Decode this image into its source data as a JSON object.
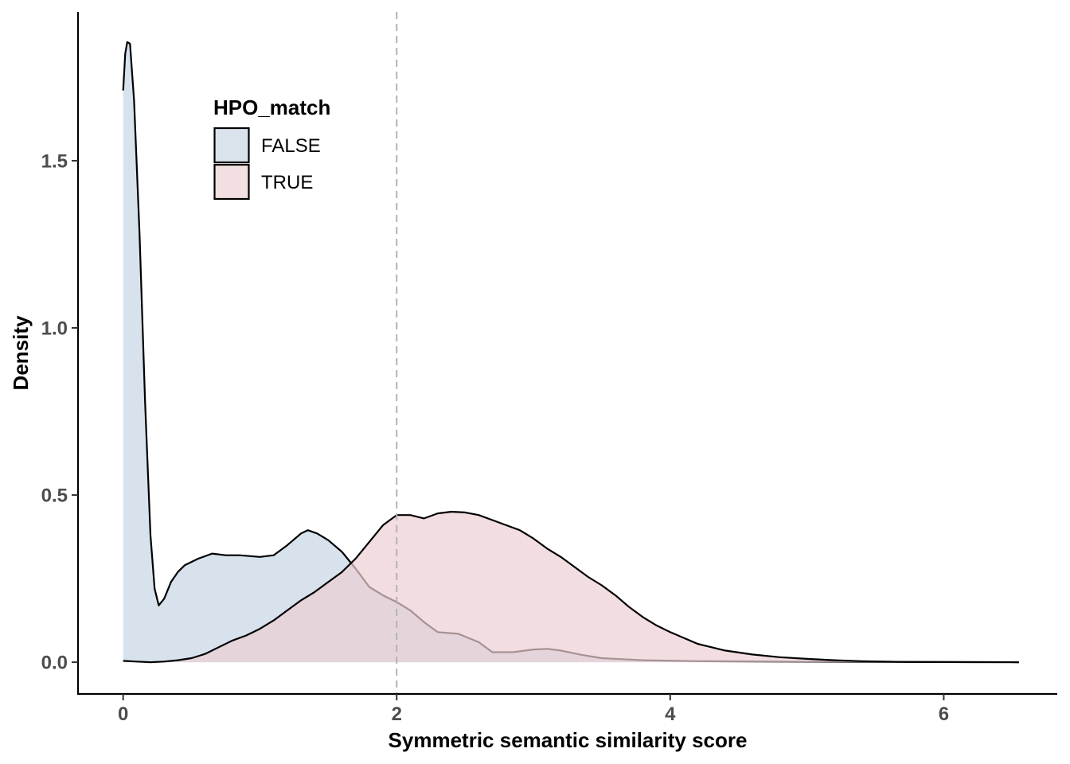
{
  "chart_data": {
    "type": "area",
    "xlabel": "Symmetric semantic similarity score",
    "ylabel": "Density",
    "xlim": [
      -0.33,
      6.83
    ],
    "ylim": [
      -0.095,
      1.945
    ],
    "x_ticks": [
      0,
      2,
      4,
      6
    ],
    "x_tick_labels": [
      "0",
      "2",
      "4",
      "6"
    ],
    "y_ticks": [
      0,
      0.5,
      1,
      1.5
    ],
    "y_tick_labels": [
      "0.0",
      "0.5",
      "1.0",
      "1.5"
    ],
    "grid": false,
    "reference_line": {
      "x": 2,
      "style": "dashed",
      "color": "#b3b3b3"
    },
    "legend": {
      "title": "HPO_match",
      "placement": "top-left",
      "entries": [
        {
          "label": "FALSE",
          "color": "#dae3ec"
        },
        {
          "label": "TRUE",
          "color": "#f2dfe2"
        }
      ]
    },
    "series": [
      {
        "name": "FALSE",
        "fill": "#c8d6e5",
        "fill_opacity": 0.7,
        "points": [
          [
            0.0,
            1.71
          ],
          [
            0.015,
            1.82
          ],
          [
            0.03,
            1.855
          ],
          [
            0.05,
            1.85
          ],
          [
            0.08,
            1.68
          ],
          [
            0.12,
            1.28
          ],
          [
            0.16,
            0.78
          ],
          [
            0.2,
            0.38
          ],
          [
            0.23,
            0.22
          ],
          [
            0.26,
            0.17
          ],
          [
            0.3,
            0.19
          ],
          [
            0.35,
            0.24
          ],
          [
            0.4,
            0.27
          ],
          [
            0.45,
            0.29
          ],
          [
            0.55,
            0.31
          ],
          [
            0.65,
            0.325
          ],
          [
            0.75,
            0.32
          ],
          [
            0.85,
            0.32
          ],
          [
            1.0,
            0.315
          ],
          [
            1.1,
            0.32
          ],
          [
            1.2,
            0.35
          ],
          [
            1.3,
            0.385
          ],
          [
            1.35,
            0.395
          ],
          [
            1.42,
            0.385
          ],
          [
            1.5,
            0.365
          ],
          [
            1.6,
            0.33
          ],
          [
            1.7,
            0.28
          ],
          [
            1.8,
            0.225
          ],
          [
            1.9,
            0.2
          ],
          [
            2.0,
            0.18
          ],
          [
            2.1,
            0.155
          ],
          [
            2.2,
            0.12
          ],
          [
            2.3,
            0.09
          ],
          [
            2.45,
            0.085
          ],
          [
            2.6,
            0.06
          ],
          [
            2.7,
            0.03
          ],
          [
            2.85,
            0.03
          ],
          [
            3.0,
            0.038
          ],
          [
            3.1,
            0.04
          ],
          [
            3.2,
            0.035
          ],
          [
            3.35,
            0.022
          ],
          [
            3.5,
            0.012
          ],
          [
            3.8,
            0.006
          ],
          [
            4.2,
            0.003
          ],
          [
            4.8,
            0.002
          ],
          [
            5.5,
            0.001
          ],
          [
            6.2,
            0.0003
          ],
          [
            6.55,
            0.0
          ]
        ]
      },
      {
        "name": "TRUE",
        "fill": "#ecced3",
        "fill_opacity": 0.7,
        "points": [
          [
            0.0,
            0.004
          ],
          [
            0.1,
            0.002
          ],
          [
            0.2,
            0.0
          ],
          [
            0.3,
            0.002
          ],
          [
            0.4,
            0.006
          ],
          [
            0.5,
            0.012
          ],
          [
            0.6,
            0.025
          ],
          [
            0.7,
            0.045
          ],
          [
            0.8,
            0.065
          ],
          [
            0.9,
            0.08
          ],
          [
            1.0,
            0.1
          ],
          [
            1.1,
            0.125
          ],
          [
            1.2,
            0.155
          ],
          [
            1.3,
            0.185
          ],
          [
            1.4,
            0.21
          ],
          [
            1.5,
            0.24
          ],
          [
            1.6,
            0.27
          ],
          [
            1.7,
            0.31
          ],
          [
            1.8,
            0.36
          ],
          [
            1.9,
            0.41
          ],
          [
            2.0,
            0.44
          ],
          [
            2.1,
            0.44
          ],
          [
            2.2,
            0.43
          ],
          [
            2.3,
            0.445
          ],
          [
            2.4,
            0.45
          ],
          [
            2.5,
            0.448
          ],
          [
            2.6,
            0.44
          ],
          [
            2.7,
            0.425
          ],
          [
            2.8,
            0.41
          ],
          [
            2.9,
            0.395
          ],
          [
            3.0,
            0.37
          ],
          [
            3.1,
            0.34
          ],
          [
            3.2,
            0.315
          ],
          [
            3.3,
            0.285
          ],
          [
            3.4,
            0.255
          ],
          [
            3.5,
            0.23
          ],
          [
            3.6,
            0.2
          ],
          [
            3.7,
            0.165
          ],
          [
            3.8,
            0.135
          ],
          [
            3.9,
            0.11
          ],
          [
            4.0,
            0.09
          ],
          [
            4.2,
            0.055
          ],
          [
            4.4,
            0.035
          ],
          [
            4.6,
            0.023
          ],
          [
            4.8,
            0.015
          ],
          [
            5.0,
            0.01
          ],
          [
            5.2,
            0.006
          ],
          [
            5.4,
            0.003
          ],
          [
            5.7,
            0.001
          ],
          [
            6.0,
            0.0005
          ],
          [
            6.55,
            0.0
          ]
        ]
      }
    ]
  }
}
